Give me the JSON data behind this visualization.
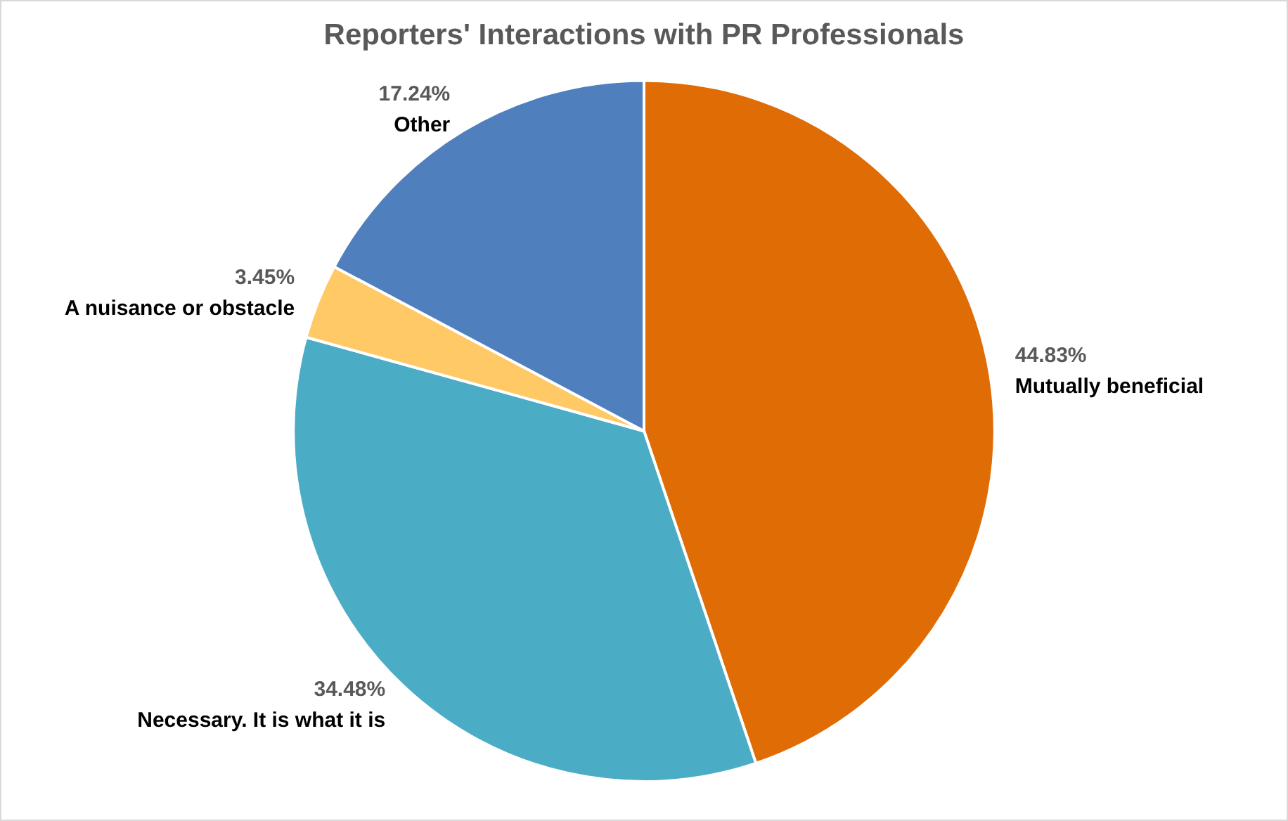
{
  "chart_data": {
    "type": "pie",
    "title": "Reporters' Interactions with PR Professionals",
    "categories": [
      "Mutually beneficial",
      "Necessary. It is what it is",
      "A nuisance or obstacle",
      "Other"
    ],
    "values": [
      44.83,
      34.48,
      3.45,
      17.24
    ],
    "colors": [
      "#e06c06",
      "#4bacc6",
      "#ffc966",
      "#4f7fbd"
    ],
    "value_labels": [
      "44.83%",
      "34.48%",
      "3.45%",
      "17.24%"
    ],
    "legend": false
  }
}
